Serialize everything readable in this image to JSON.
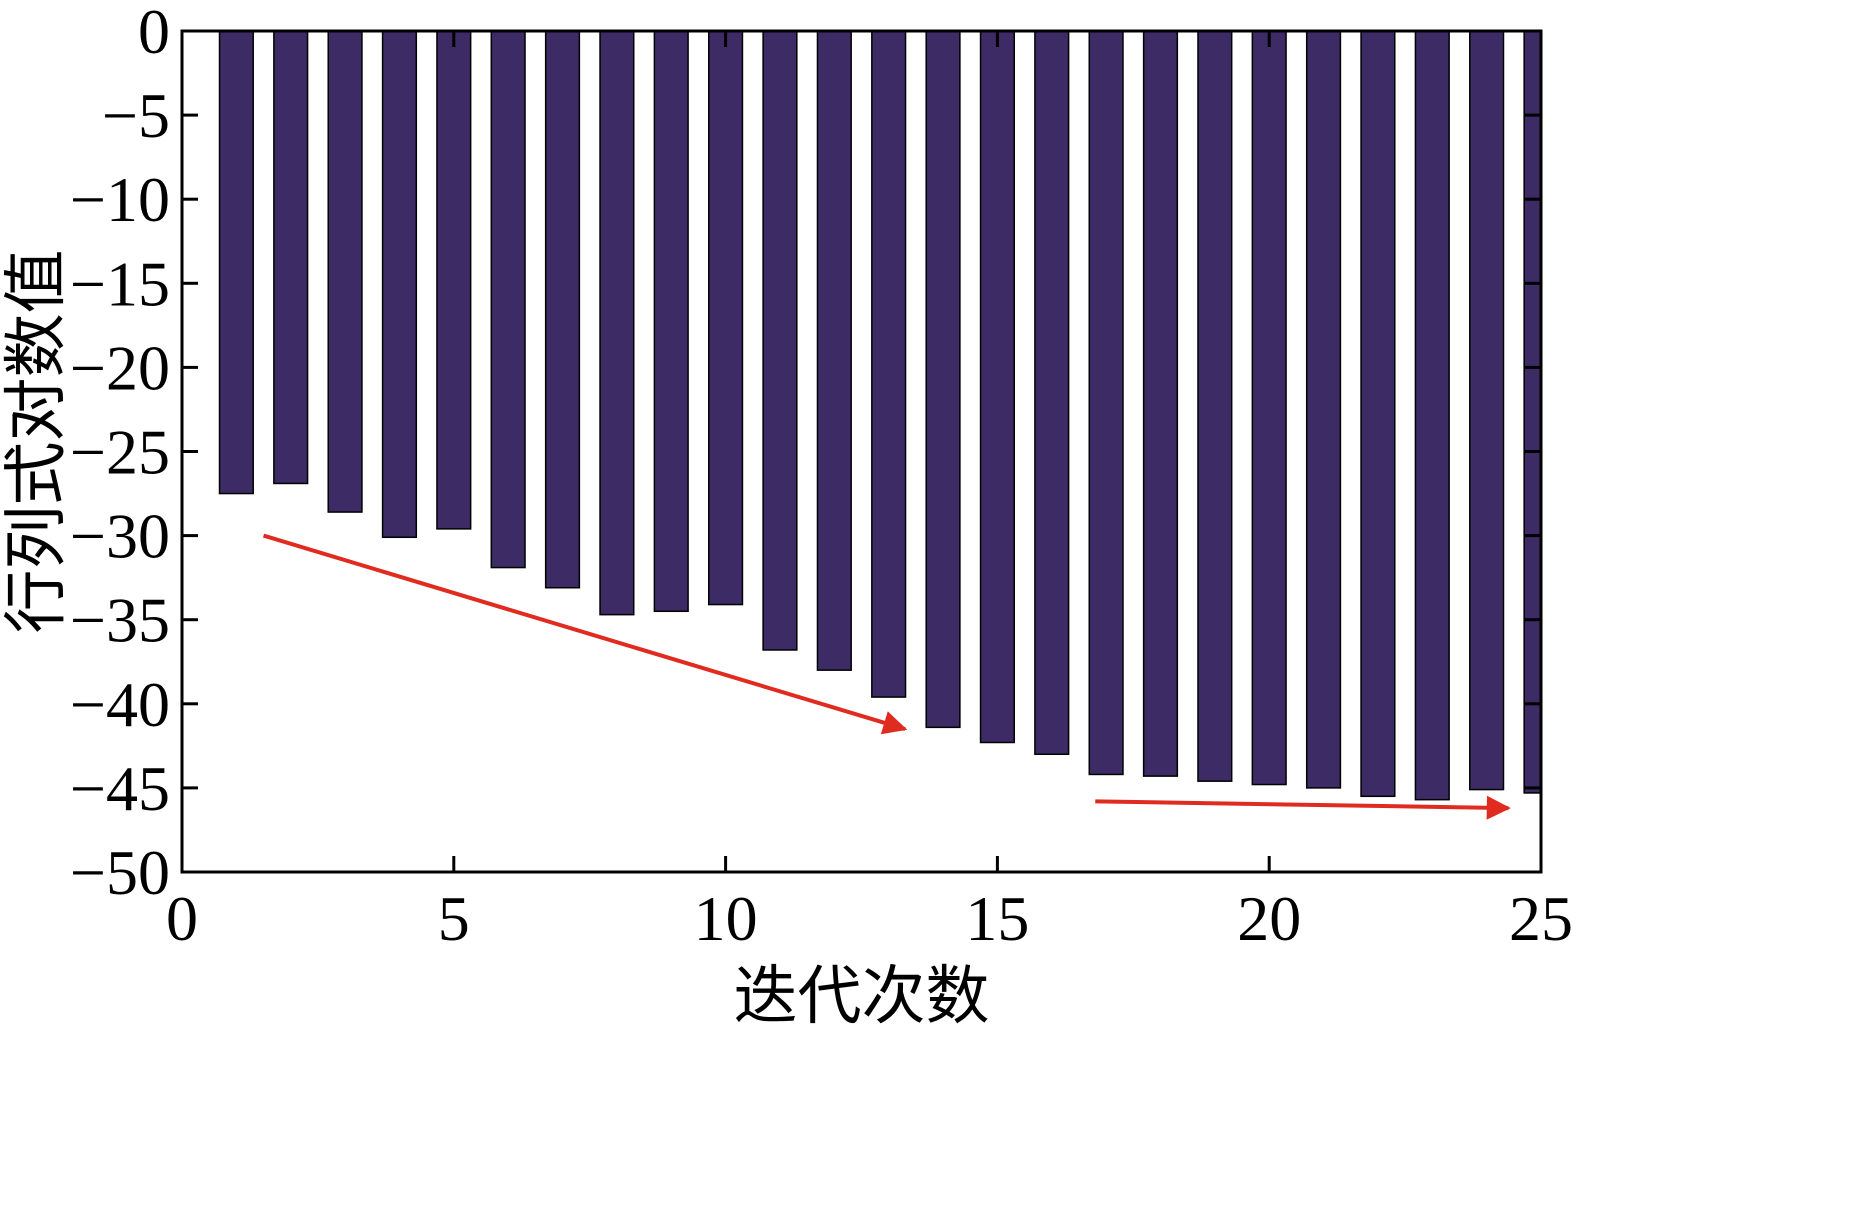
{
  "chart_data": {
    "type": "bar",
    "x": [
      1,
      2,
      3,
      4,
      5,
      6,
      7,
      8,
      9,
      10,
      11,
      12,
      13,
      14,
      15,
      16,
      17,
      18,
      19,
      20,
      21,
      22,
      23,
      24,
      25
    ],
    "values": [
      -27.5,
      -26.9,
      -28.6,
      -30.1,
      -29.6,
      -31.9,
      -33.1,
      -34.7,
      -34.5,
      -34.1,
      -36.8,
      -38.0,
      -39.6,
      -41.4,
      -42.3,
      -43.0,
      -44.2,
      -44.3,
      -44.6,
      -44.8,
      -45.0,
      -45.5,
      -45.7,
      -45.1,
      -45.3
    ],
    "xlabel": "迭代次数",
    "ylabel": "行列式对数值",
    "xlim": [
      0,
      25
    ],
    "ylim": [
      -50,
      0
    ],
    "xticks": [
      0,
      5,
      10,
      15,
      20,
      25
    ],
    "yticks": [
      0,
      -5,
      -10,
      -15,
      -20,
      -25,
      -30,
      -35,
      -40,
      -45,
      -50
    ],
    "xtick_labels": [
      "0",
      "5",
      "10",
      "15",
      "20",
      "25"
    ],
    "ytick_labels": [
      "0",
      "−5",
      "−10",
      "−15",
      "−20",
      "−25",
      "−30",
      "−35",
      "−40",
      "−45",
      "−50"
    ],
    "grid": false,
    "bar_color": "#3d2b66",
    "annotations": [
      {
        "type": "arrow",
        "color": "#e02b20",
        "from": [
          1.5,
          -30.0
        ],
        "to": [
          13.3,
          -41.5
        ]
      },
      {
        "type": "arrow",
        "color": "#e02b20",
        "from": [
          16.8,
          -45.8
        ],
        "to": [
          24.4,
          -46.2
        ]
      }
    ]
  }
}
